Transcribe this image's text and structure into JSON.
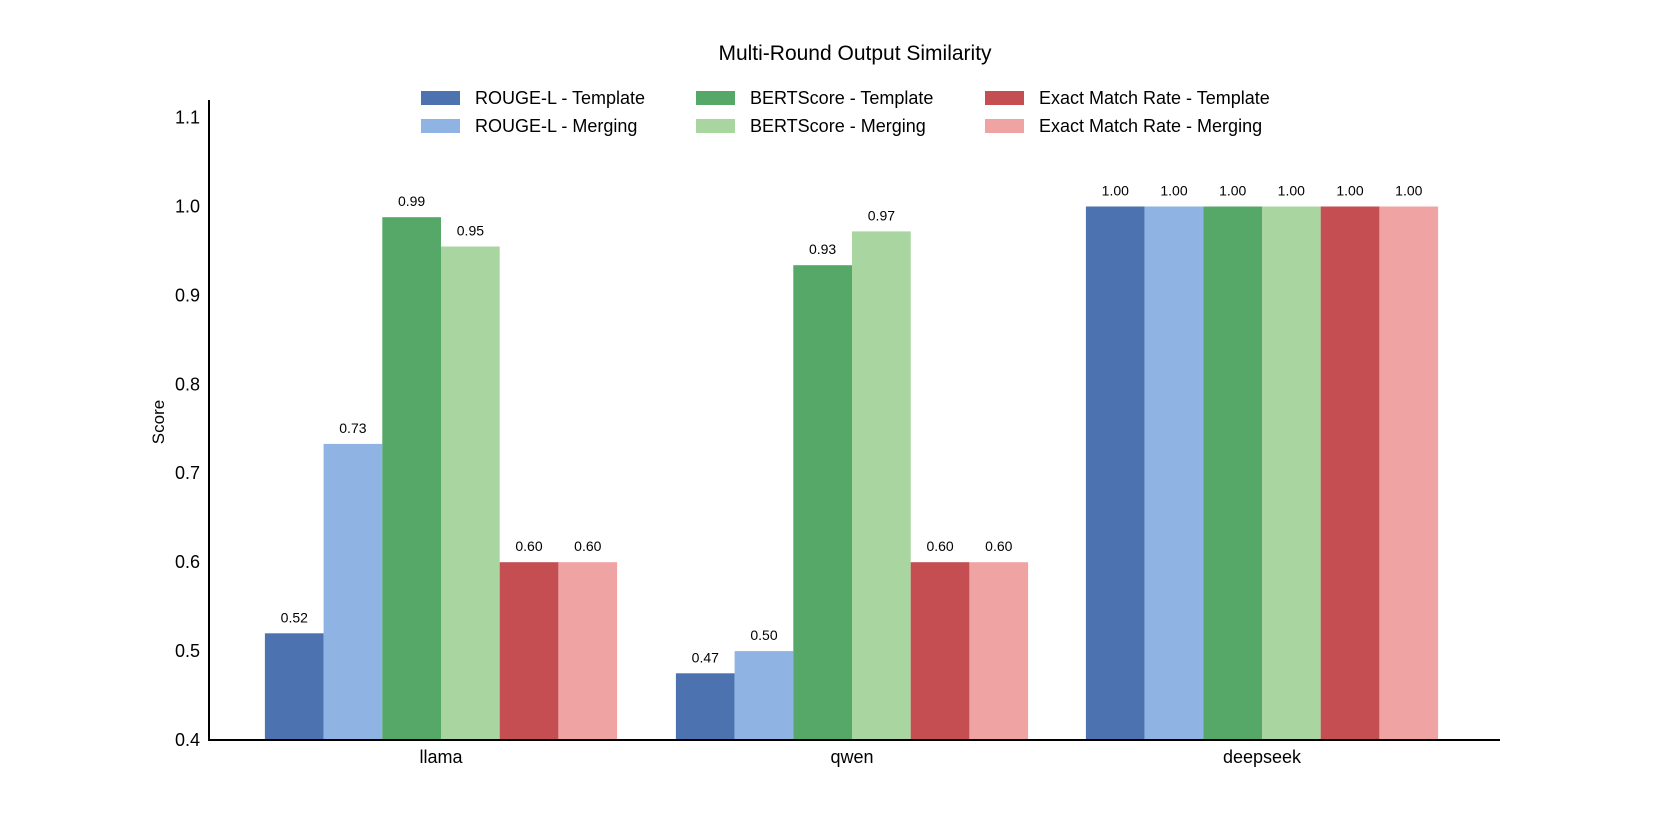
{
  "chart_data": {
    "type": "bar",
    "title": "Multi-Round Output Similarity",
    "xlabel": "",
    "ylabel": "Score",
    "ylim": [
      0.4,
      1.12
    ],
    "yticks": [
      "0.4",
      "0.5",
      "0.6",
      "0.7",
      "0.8",
      "0.9",
      "1.0",
      "1.1"
    ],
    "grid": false,
    "legend_position": "top-center",
    "categories": [
      "llama",
      "qwen",
      "deepseek"
    ],
    "series": [
      {
        "name": "ROUGE-L - Template",
        "color": "#4c72b0",
        "values": [
          0.52,
          0.475,
          1.0
        ],
        "labels": [
          "0.52",
          "0.47",
          "1.00"
        ]
      },
      {
        "name": "ROUGE-L - Merging",
        "color": "#8fb3e3",
        "values": [
          0.733,
          0.5,
          1.0
        ],
        "labels": [
          "0.73",
          "0.50",
          "1.00"
        ]
      },
      {
        "name": "BERTScore - Template",
        "color": "#55a868",
        "values": [
          0.988,
          0.934,
          1.0
        ],
        "labels": [
          "0.99",
          "0.93",
          "1.00"
        ]
      },
      {
        "name": "BERTScore - Merging",
        "color": "#a8d5a0",
        "values": [
          0.955,
          0.972,
          1.0
        ],
        "labels": [
          "0.95",
          "0.97",
          "1.00"
        ]
      },
      {
        "name": "Exact Match Rate - Template",
        "color": "#c44e52",
        "values": [
          0.6,
          0.6,
          1.0
        ],
        "labels": [
          "0.60",
          "0.60",
          "1.00"
        ]
      },
      {
        "name": "Exact Match Rate - Merging",
        "color": "#f0a3a3",
        "values": [
          0.6,
          0.6,
          1.0
        ],
        "labels": [
          "0.60",
          "0.60",
          "1.00"
        ]
      }
    ]
  }
}
